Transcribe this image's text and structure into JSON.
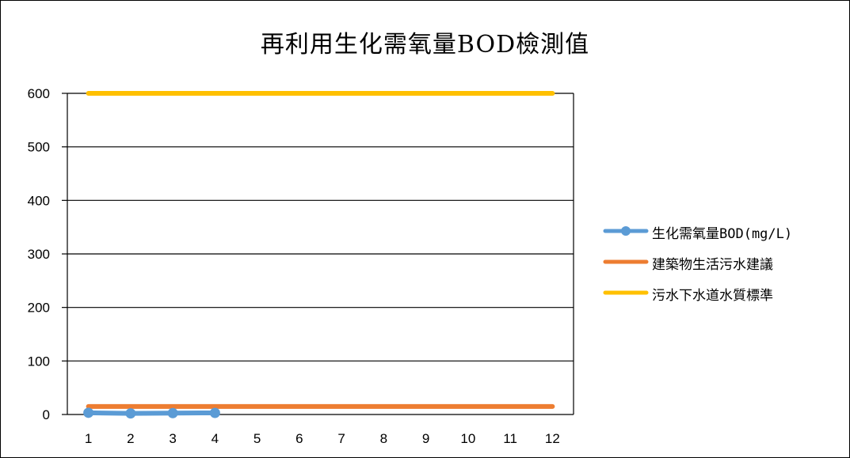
{
  "chart_data": {
    "type": "line",
    "title": "再利用生化需氧量BOD檢測值",
    "xlabel": "",
    "ylabel": "",
    "categories": [
      "1",
      "2",
      "3",
      "4",
      "5",
      "6",
      "7",
      "8",
      "9",
      "10",
      "11",
      "12"
    ],
    "ylim": [
      0,
      600
    ],
    "yticks": [
      0,
      100,
      200,
      300,
      400,
      500,
      600
    ],
    "grid": true,
    "legend_position": "right",
    "series": [
      {
        "name": "生化需氧量BOD(mg/L)",
        "color": "#5b9bd5",
        "marker": "circle",
        "values": [
          3.2,
          2.0,
          2.6,
          3.0,
          null,
          null,
          null,
          null,
          null,
          null,
          null,
          null
        ]
      },
      {
        "name": "建築物生活污水建議",
        "color": "#ed7d31",
        "marker": "none",
        "values": [
          15,
          15,
          15,
          15,
          15,
          15,
          15,
          15,
          15,
          15,
          15,
          15
        ]
      },
      {
        "name": "污水下水道水質標準",
        "color": "#ffc000",
        "marker": "none",
        "values": [
          600,
          600,
          600,
          600,
          600,
          600,
          600,
          600,
          600,
          600,
          600,
          600
        ]
      }
    ]
  }
}
